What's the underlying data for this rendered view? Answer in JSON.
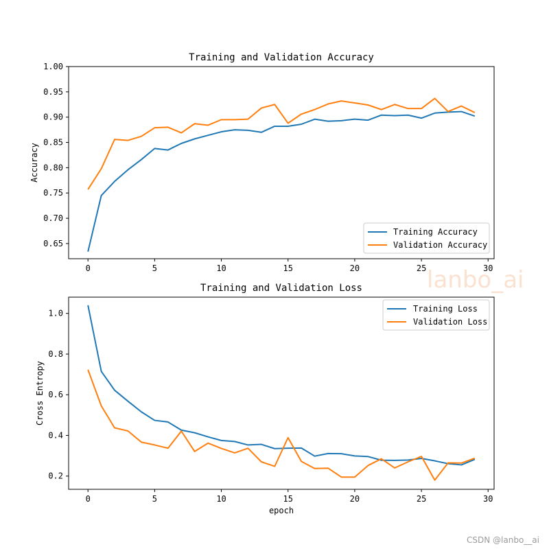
{
  "chart_data": [
    {
      "type": "line",
      "title": "Training and Validation Accuracy",
      "xlabel": "",
      "ylabel": "Accuracy",
      "xlim": [
        -1.45,
        30.45
      ],
      "ylim": [
        0.62,
        1.0
      ],
      "xticks": [
        0,
        5,
        10,
        15,
        20,
        25,
        30
      ],
      "xtick_labels": [
        "0",
        "5",
        "10",
        "15",
        "20",
        "25",
        "30"
      ],
      "yticks": [
        0.65,
        0.7,
        0.75,
        0.8,
        0.85,
        0.9,
        0.95,
        1.0
      ],
      "ytick_labels": [
        "0.65",
        "0.70",
        "0.75",
        "0.80",
        "0.85",
        "0.90",
        "0.95",
        "1.00"
      ],
      "legend_position": "lower-right",
      "grid": false,
      "x": [
        0,
        1,
        2,
        3,
        4,
        5,
        6,
        7,
        8,
        9,
        10,
        11,
        12,
        13,
        14,
        15,
        16,
        17,
        18,
        19,
        20,
        21,
        22,
        23,
        24,
        25,
        26,
        27,
        28,
        29
      ],
      "series": [
        {
          "name": "Training Accuracy",
          "color": "#1f77b4",
          "values": [
            0.634,
            0.745,
            0.773,
            0.796,
            0.816,
            0.838,
            0.835,
            0.848,
            0.857,
            0.864,
            0.871,
            0.875,
            0.874,
            0.87,
            0.882,
            0.882,
            0.886,
            0.896,
            0.892,
            0.893,
            0.896,
            0.894,
            0.904,
            0.903,
            0.904,
            0.898,
            0.908,
            0.91,
            0.911,
            0.902
          ]
        },
        {
          "name": "Validation Accuracy",
          "color": "#ff7f0e",
          "values": [
            0.757,
            0.798,
            0.856,
            0.854,
            0.862,
            0.879,
            0.88,
            0.869,
            0.887,
            0.884,
            0.895,
            0.895,
            0.896,
            0.918,
            0.925,
            0.888,
            0.906,
            0.915,
            0.926,
            0.932,
            0.928,
            0.924,
            0.915,
            0.925,
            0.917,
            0.917,
            0.937,
            0.911,
            0.922,
            0.909
          ]
        }
      ]
    },
    {
      "type": "line",
      "title": "Training and Validation Loss",
      "xlabel": "epoch",
      "ylabel": "Cross Entropy",
      "xlim": [
        -1.45,
        30.45
      ],
      "ylim": [
        0.135,
        1.08
      ],
      "xticks": [
        0,
        5,
        10,
        15,
        20,
        25,
        30
      ],
      "xtick_labels": [
        "0",
        "5",
        "10",
        "15",
        "20",
        "25",
        "30"
      ],
      "yticks": [
        0.2,
        0.4,
        0.6,
        0.8,
        1.0
      ],
      "ytick_labels": [
        "0.2",
        "0.4",
        "0.6",
        "0.8",
        "1.0"
      ],
      "legend_position": "upper-right",
      "grid": false,
      "x": [
        0,
        1,
        2,
        3,
        4,
        5,
        6,
        7,
        8,
        9,
        10,
        11,
        12,
        13,
        14,
        15,
        16,
        17,
        18,
        19,
        20,
        21,
        22,
        23,
        24,
        25,
        26,
        27,
        28,
        29
      ],
      "series": [
        {
          "name": "Training Loss",
          "color": "#1f77b4",
          "values": [
            1.04,
            0.715,
            0.622,
            0.568,
            0.516,
            0.474,
            0.466,
            0.426,
            0.413,
            0.393,
            0.375,
            0.37,
            0.353,
            0.356,
            0.335,
            0.337,
            0.338,
            0.298,
            0.311,
            0.31,
            0.299,
            0.296,
            0.278,
            0.277,
            0.279,
            0.287,
            0.275,
            0.261,
            0.255,
            0.282
          ]
        },
        {
          "name": "Validation Loss",
          "color": "#ff7f0e",
          "values": [
            0.723,
            0.545,
            0.437,
            0.422,
            0.367,
            0.353,
            0.337,
            0.421,
            0.321,
            0.362,
            0.336,
            0.314,
            0.337,
            0.27,
            0.248,
            0.389,
            0.272,
            0.237,
            0.239,
            0.195,
            0.195,
            0.252,
            0.285,
            0.24,
            0.27,
            0.297,
            0.18,
            0.265,
            0.264,
            0.288
          ]
        }
      ]
    }
  ],
  "watermark": "lanbo_ai",
  "credit": "CSDN @lanbo__ai"
}
